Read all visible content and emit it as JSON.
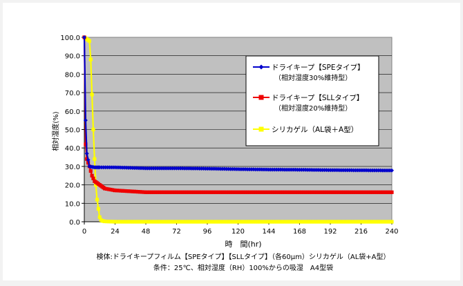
{
  "chart_data": {
    "type": "line",
    "ylabel": "相対湿度(%)",
    "xlabel": "時　間(hr)",
    "xlim": [
      0,
      240
    ],
    "ylim": [
      0,
      100
    ],
    "x_ticks": [
      "0",
      "24",
      "48",
      "72",
      "96",
      "120",
      "144",
      "168",
      "192",
      "216",
      "240"
    ],
    "y_ticks": [
      "0.0",
      "10.0",
      "20.0",
      "30.0",
      "40.0",
      "50.0",
      "60.0",
      "70.0",
      "80.0",
      "90.0",
      "100.0"
    ],
    "grid": "horizontal",
    "legend_position": "top-right",
    "series": [
      {
        "name": "ドライキープ【SPEタイプ】",
        "name2": "（相対湿度30%維持型）",
        "color": "#0000cc",
        "marker": "diamond",
        "x": [
          0,
          1,
          2,
          4,
          8,
          12,
          24,
          48,
          72,
          96,
          120,
          144,
          168,
          192,
          216,
          240
        ],
        "values": [
          100,
          55,
          37,
          30,
          29.5,
          29.5,
          29.5,
          29,
          29,
          28.8,
          28.5,
          28.3,
          28.2,
          28,
          27.9,
          27.8
        ]
      },
      {
        "name": "ドライキープ【SLLタイプ】",
        "name2": "（相対湿度20%維持型）",
        "color": "#ee0000",
        "marker": "square",
        "x": [
          0,
          1,
          2,
          4,
          6,
          8,
          12,
          16,
          24,
          36,
          48,
          72,
          96,
          120,
          144,
          168,
          192,
          216,
          240
        ],
        "values": [
          100,
          42,
          34,
          30,
          25,
          22,
          20,
          18,
          17,
          16.5,
          16,
          16,
          16,
          16,
          16,
          16,
          16,
          16,
          16
        ]
      },
      {
        "name": "シリカゲル（AL袋＋A型）",
        "color": "#ffff00",
        "marker": "square",
        "x": [
          0,
          1,
          2,
          3,
          4,
          5,
          6,
          7,
          8,
          9,
          10,
          11,
          12,
          13,
          14,
          16,
          24,
          48,
          72,
          96,
          120,
          144,
          168,
          192,
          216,
          240
        ],
        "values": [
          100,
          99.5,
          99,
          98.5,
          98,
          88,
          69,
          50,
          34,
          20,
          12,
          7,
          2.5,
          1,
          0.5,
          0.2,
          0,
          0,
          0,
          0,
          0,
          0,
          0,
          0,
          0,
          0
        ]
      }
    ],
    "annotations": [
      "検体:ドライキープフィルム【SPEタイプ】【SLLタイプ】（各60μm）シリカゲル（AL袋+A型）",
      "条件：25℃、相対湿度（RH）100%からの吸湿　A4型袋"
    ]
  }
}
